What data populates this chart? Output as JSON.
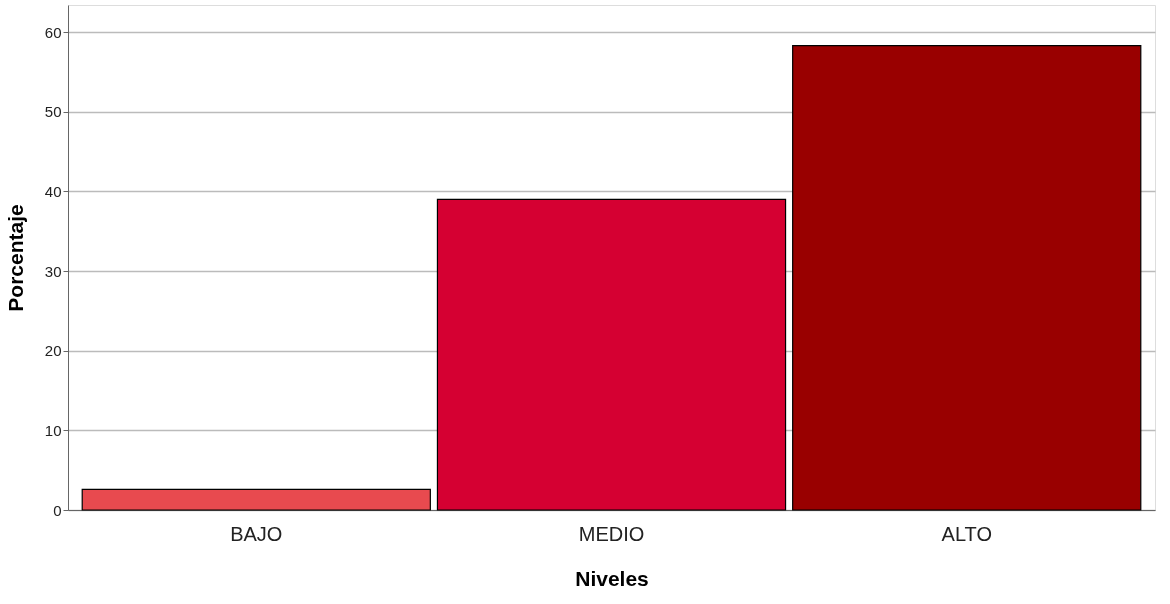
{
  "chart_data": {
    "type": "bar",
    "xlabel": "Niveles",
    "ylabel": "Porcentaje",
    "categories": [
      "BAJO",
      "MEDIO",
      "ALTO"
    ],
    "values": [
      2.6,
      39.0,
      58.3
    ],
    "colors": [
      "#e84a4f",
      "#d50032",
      "#990000"
    ],
    "ylim": [
      0,
      63.4
    ],
    "yticks": [
      0,
      10,
      20,
      30,
      40,
      50,
      60
    ],
    "grid": "y"
  }
}
